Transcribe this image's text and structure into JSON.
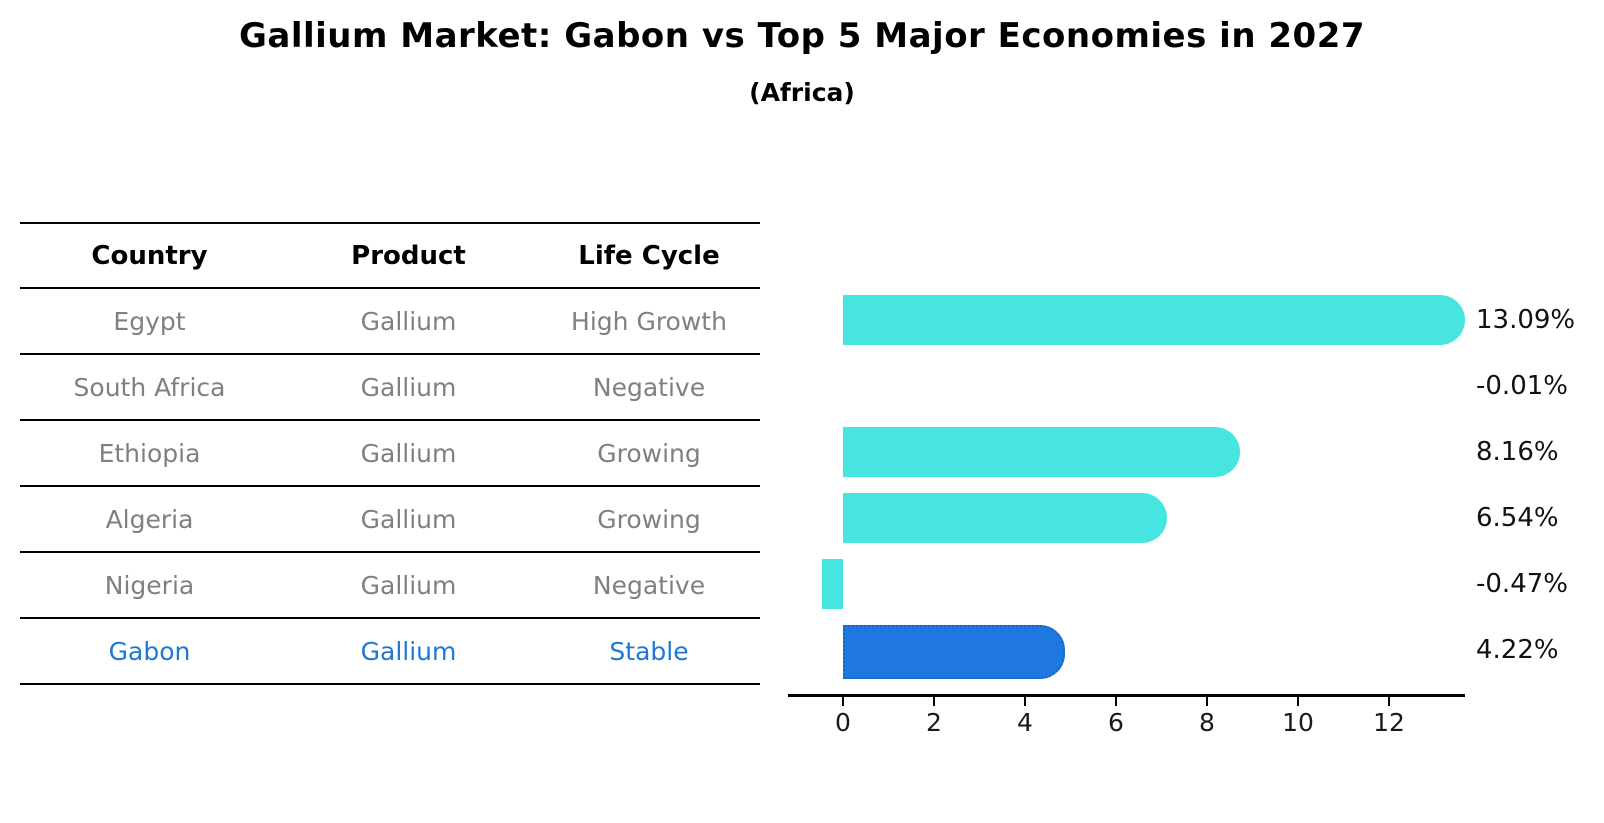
{
  "title": "Gallium Market: Gabon vs Top 5 Major Economies in 2027",
  "subtitle": "(Africa)",
  "table": {
    "headers": [
      "Country",
      "Product",
      "Life Cycle"
    ],
    "rows": [
      {
        "country": "Egypt",
        "product": "Gallium",
        "life_cycle": "High Growth",
        "highlight": false
      },
      {
        "country": "South Africa",
        "product": "Gallium",
        "life_cycle": "Negative",
        "highlight": false
      },
      {
        "country": "Ethiopia",
        "product": "Gallium",
        "life_cycle": "Growing",
        "highlight": false
      },
      {
        "country": "Algeria",
        "product": "Gallium",
        "life_cycle": "Growing",
        "highlight": false
      },
      {
        "country": "Nigeria",
        "product": "Gallium",
        "life_cycle": "Negative",
        "highlight": false
      },
      {
        "country": "Gabon",
        "product": "Gallium",
        "life_cycle": "Stable",
        "highlight": true
      }
    ]
  },
  "chart_data": {
    "type": "bar",
    "orientation": "horizontal",
    "title": "Gallium Market: Gabon vs Top 5 Major Economies in 2027",
    "subtitle": "(Africa)",
    "categories": [
      "Egypt",
      "South Africa",
      "Ethiopia",
      "Algeria",
      "Nigeria",
      "Gabon"
    ],
    "values": [
      13.09,
      -0.01,
      8.16,
      6.54,
      -0.47,
      4.22
    ],
    "value_labels": [
      "13.09%",
      "-0.01%",
      "8.16%",
      "6.54%",
      "-0.47%",
      "4.22%"
    ],
    "unit": "%",
    "highlighted_category": "Gabon",
    "x_ticks": [
      0,
      2,
      4,
      6,
      8,
      10,
      12
    ],
    "xlim": [
      -1.2,
      13.7
    ],
    "grid": false,
    "legend": false,
    "colors": {
      "bar": "#46E5DF",
      "highlight_bar": "#1E78E0",
      "highlight_border": "#1565C8",
      "highlight_text": "#1E78D6",
      "row_text": "#808080",
      "axis": "#000000"
    }
  }
}
